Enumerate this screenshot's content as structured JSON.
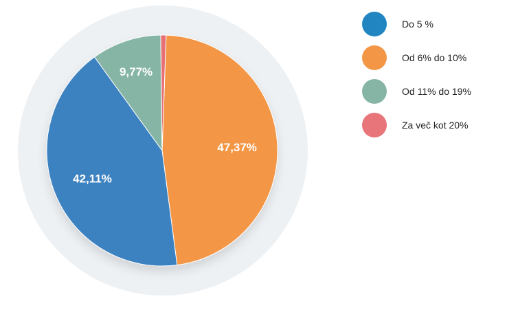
{
  "chart_data": {
    "type": "pie",
    "categories": [
      "Do 5 %",
      "Od 6% do 10%",
      "Od 11% do 19%",
      "Za več kot 20%"
    ],
    "values": [
      42.11,
      47.37,
      9.77,
      0.75
    ],
    "data_labels": [
      "42,11%",
      "47,37%",
      "9,77%",
      ""
    ],
    "colors": [
      "#3d82c0",
      "#f39645",
      "#86b5a6",
      "#e76f74"
    ],
    "legend_placement": "right"
  },
  "legend": {
    "items": [
      {
        "label": "Do 5 %",
        "color": "#2185c1"
      },
      {
        "label": "Od 6% do 10%",
        "color": "#f39645"
      },
      {
        "label": "Od 11% do 19%",
        "color": "#86b5a6"
      },
      {
        "label": "Za več kot 20%",
        "color": "#e8757a"
      }
    ]
  }
}
